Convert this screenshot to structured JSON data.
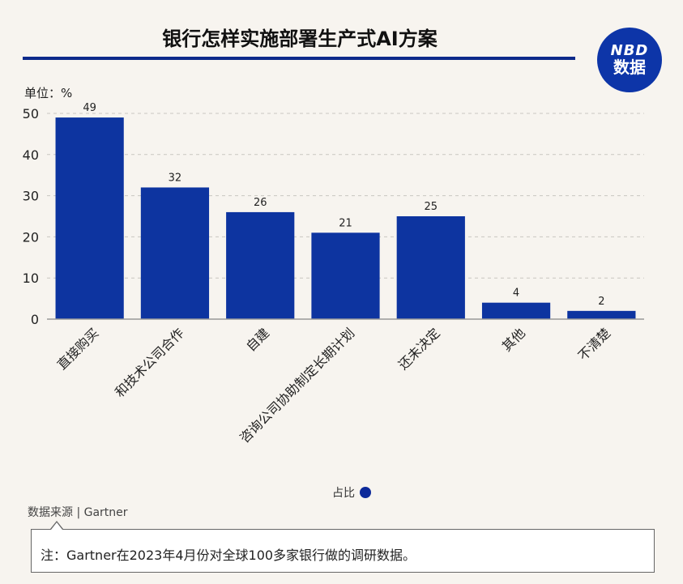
{
  "header": {
    "title": "银行怎样实施部署生产式AI方案",
    "logo_line1": "NBD",
    "logo_line2": "数据"
  },
  "unit_label": "单位：%",
  "legend": {
    "label": "占比"
  },
  "source": "数据来源 | Gartner",
  "note": "注：Gartner在2023年4月份对全球100多家银行做的调研数据。",
  "colors": {
    "bar": "#0d34a0",
    "title_rule": "#0d2a8a",
    "logo": "#0d35a8"
  },
  "chart_data": {
    "type": "bar",
    "categories": [
      "直接购买",
      "和技术公司合作",
      "自建",
      "咨询公司协助制定长期计划",
      "还未决定",
      "其他",
      "不清楚"
    ],
    "values": [
      49,
      32,
      26,
      21,
      25,
      4,
      2
    ],
    "ylim": [
      0,
      50
    ],
    "yticks": [
      0,
      10,
      20,
      30,
      40,
      50
    ],
    "grid": true,
    "legend_position": "bottom"
  }
}
